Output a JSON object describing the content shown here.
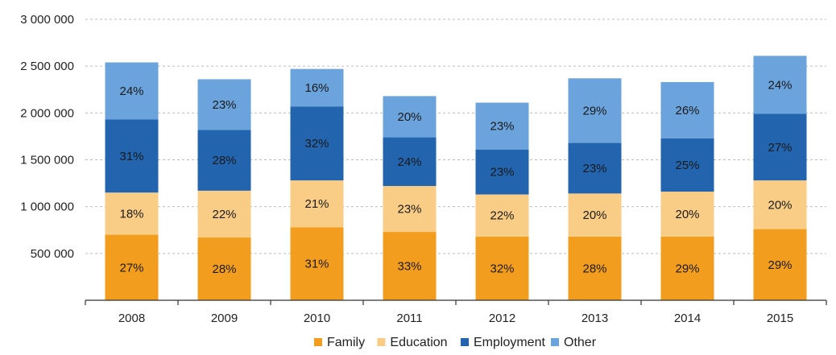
{
  "chart_data": {
    "type": "bar",
    "stacked": true,
    "title": "",
    "xlabel": "",
    "ylabel": "",
    "categories": [
      "2008",
      "2009",
      "2010",
      "2011",
      "2012",
      "2013",
      "2014",
      "2015"
    ],
    "y_ticks": [
      0,
      500000,
      1000000,
      1500000,
      2000000,
      2500000,
      3000000
    ],
    "y_tick_labels": [
      "",
      "500 000",
      "1 000 000",
      "1 500 000",
      "2 000 000",
      "2 500 000",
      "3 000 000"
    ],
    "ylim": [
      0,
      3000000
    ],
    "grid": true,
    "legend_position": "bottom",
    "series": [
      {
        "name": "Family",
        "color": "#f29d1d",
        "values": [
          700000,
          670000,
          780000,
          730000,
          680000,
          680000,
          680000,
          760000
        ],
        "labels": [
          "27%",
          "28%",
          "31%",
          "33%",
          "32%",
          "28%",
          "29%",
          "29%"
        ]
      },
      {
        "name": "Education",
        "color": "#f9cd86",
        "values": [
          450000,
          500000,
          500000,
          490000,
          450000,
          460000,
          480000,
          520000
        ],
        "labels": [
          "18%",
          "22%",
          "21%",
          "23%",
          "22%",
          "20%",
          "20%",
          "20%"
        ]
      },
      {
        "name": "Employment",
        "color": "#2264ae",
        "values": [
          780000,
          650000,
          790000,
          520000,
          480000,
          540000,
          570000,
          710000
        ],
        "labels": [
          "31%",
          "28%",
          "32%",
          "24%",
          "23%",
          "23%",
          "25%",
          "27%"
        ]
      },
      {
        "name": "Other",
        "color": "#6ba3dc",
        "values": [
          610000,
          540000,
          400000,
          440000,
          500000,
          690000,
          600000,
          620000
        ],
        "labels": [
          "24%",
          "23%",
          "16%",
          "20%",
          "23%",
          "29%",
          "26%",
          "24%"
        ]
      }
    ]
  }
}
